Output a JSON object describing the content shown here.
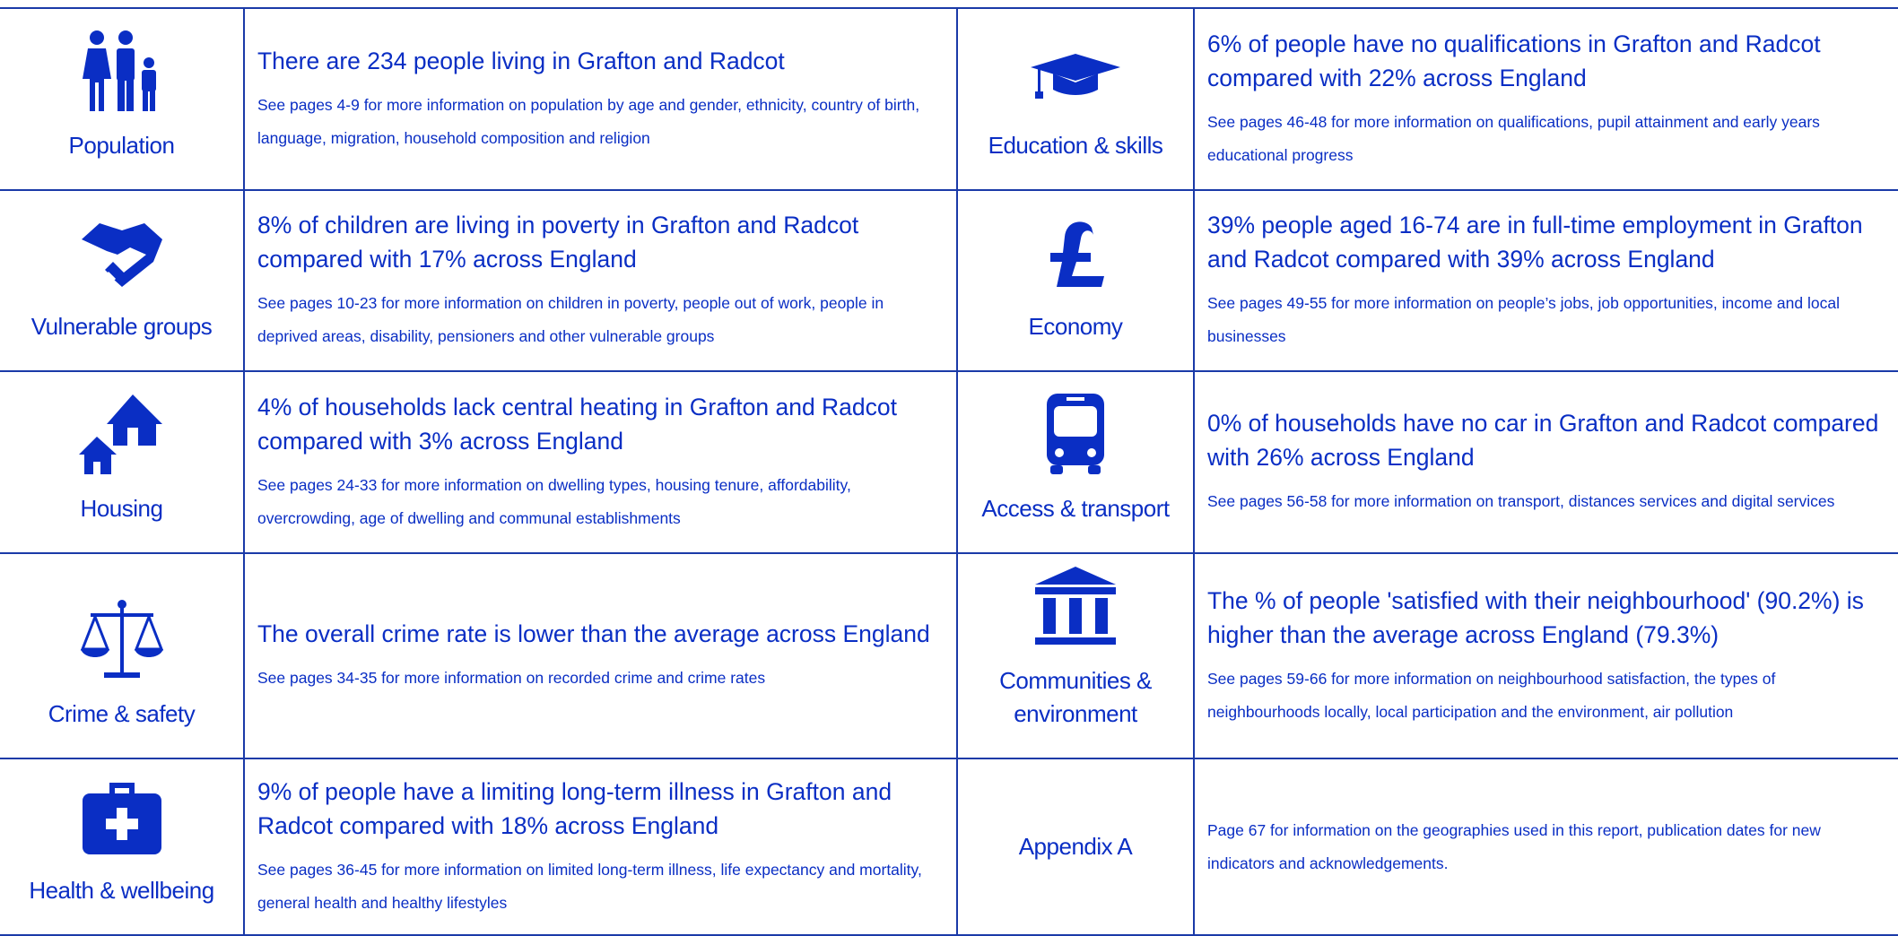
{
  "sections": [
    {
      "label": "Population",
      "headline": "There are 234 people living in Grafton and Radcot",
      "detail": "See pages 4-9 for more information on population by age and gender, ethnicity, country of birth, language, migration, household composition and religion"
    },
    {
      "label": "Education & skills",
      "headline": "6% of people have no qualifications in Grafton and Radcot compared with 22% across England",
      "detail": "See pages 46-48 for more information on qualifications, pupil attainment and early years educational progress"
    },
    {
      "label": "Vulnerable groups",
      "headline": "8% of children are living in poverty in Grafton and Radcot compared with 17% across England",
      "detail": "See pages 10-23 for more information on children in poverty, people out of work, people in deprived areas, disability, pensioners and other vulnerable groups"
    },
    {
      "label": "Economy",
      "headline": "39% people aged 16-74 are in full-time employment in Grafton and Radcot compared with 39% across England",
      "detail": "See pages 49-55 for more information on people’s jobs, job opportunities, income and local businesses"
    },
    {
      "label": "Housing",
      "headline": "4% of households lack central heating in Grafton and Radcot compared with 3% across England",
      "detail": "See pages 24-33 for more information on dwelling types, housing tenure, affordability, overcrowding, age of dwelling and communal establishments"
    },
    {
      "label": "Access & transport",
      "headline": "0% of households have no car in Grafton and Radcot compared with 26% across England",
      "detail": "See pages 56-58 for more information on transport, distances services and digital services"
    },
    {
      "label": "Crime & safety",
      "headline": "The overall crime rate is lower than the average across England",
      "detail": "See pages 34-35 for more information on recorded crime and crime rates"
    },
    {
      "label": "Communities & environment",
      "headline": "The % of people 'satisfied with their neighbourhood' (90.2%) is higher than the average across England (79.3%)",
      "detail": "See pages 59-66 for more information on neighbourhood satisfaction, the types of neighbourhoods locally, local participation and the environment, air pollution"
    },
    {
      "label": "Health & wellbeing",
      "headline": "9% of people have a limiting long-term illness in Grafton and Radcot compared with 18% across England",
      "detail": "See pages 36-45 for more information on limited long-term illness, life expectancy and mortality, general health and healthy lifestyles"
    },
    {
      "label": "Appendix A",
      "detail": "Page 67 for information on the geographies used in this report, publication dates for new indicators and acknowledgements."
    }
  ]
}
